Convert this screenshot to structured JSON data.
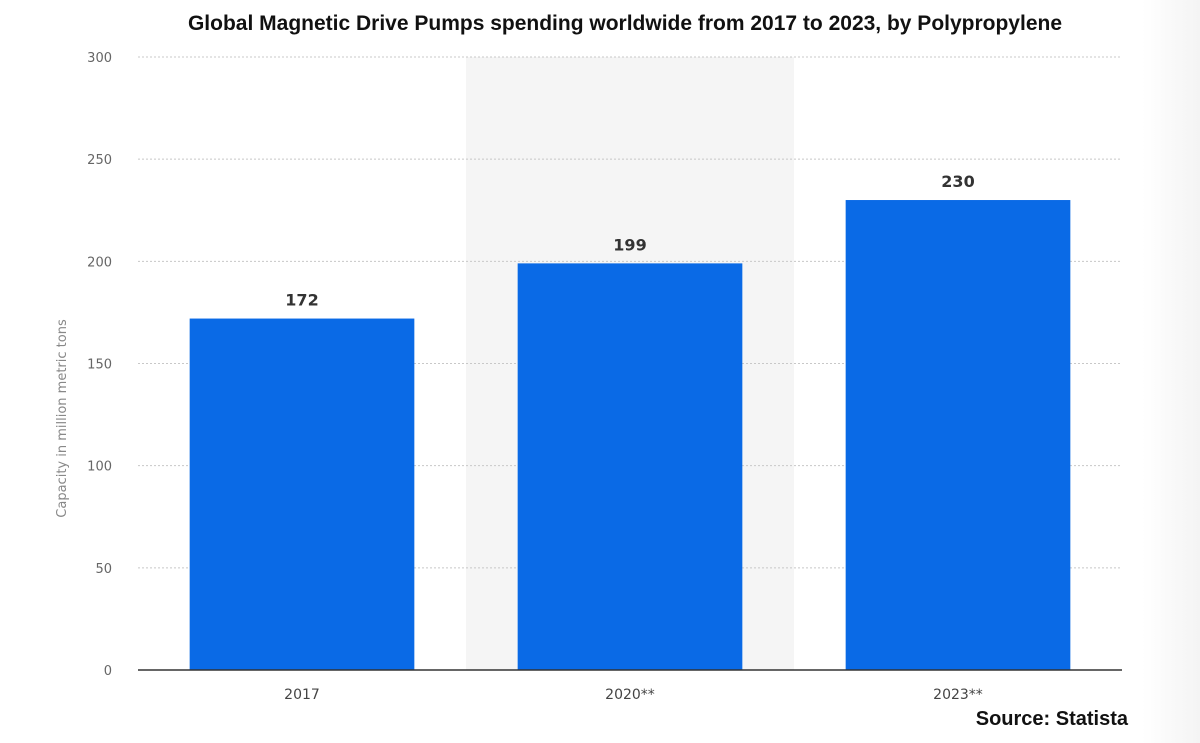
{
  "chart_data": {
    "type": "bar",
    "title": "Global Magnetic Drive Pumps spending worldwide from 2017 to 2023, by Polypropylene",
    "ylabel": "Capacity in million metric tons",
    "xlabel": "",
    "categories": [
      "2017",
      "2020**",
      "2023**"
    ],
    "values": [
      172,
      199,
      230
    ],
    "value_labels": [
      "172",
      "199",
      "230"
    ],
    "ylim": [
      0,
      300
    ],
    "yticks": [
      0,
      50,
      100,
      150,
      200,
      250,
      300
    ],
    "grid": true,
    "highlighted_category_index": 1,
    "bar_color": "#0a6ae6",
    "highlight_band_color": "#f5f5f5"
  },
  "source": "Source: Statista"
}
